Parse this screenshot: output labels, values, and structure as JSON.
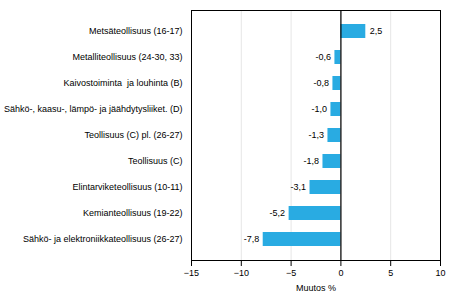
{
  "chart_data": {
    "type": "bar",
    "orientation": "horizontal",
    "categories": [
      "Metsäteollisuus (16-17)",
      "Metalliteollisuus (24-30, 33)",
      "Kaivostoiminta  ja louhinta (B)",
      "Sähkö-, kaasu-, lämpö- ja jäähdytysliiket. (D)",
      "Teollisuus (C) pl. (26-27)",
      "Teollisuus (C)",
      "Elintarviketeollisuus (10-11)",
      "Kemianteollisuus (19-22)",
      "Sähkö- ja elektroniikkateollisuus (26-27)"
    ],
    "values": [
      2.5,
      -0.6,
      -0.8,
      -1.0,
      -1.3,
      -1.8,
      -3.1,
      -5.2,
      -7.8
    ],
    "value_labels": [
      "2,5",
      "-0,6",
      "-0,8",
      "-1,0",
      "-1,3",
      "-1,8",
      "-3,1",
      "-5,2",
      "-7,8"
    ],
    "data_labels": true,
    "color": "#29abe2",
    "xlabel": "Muutos %",
    "xlim": [
      -15,
      10
    ],
    "xticks": [
      -15,
      -10,
      -5,
      0,
      5,
      10
    ],
    "grid": true
  }
}
